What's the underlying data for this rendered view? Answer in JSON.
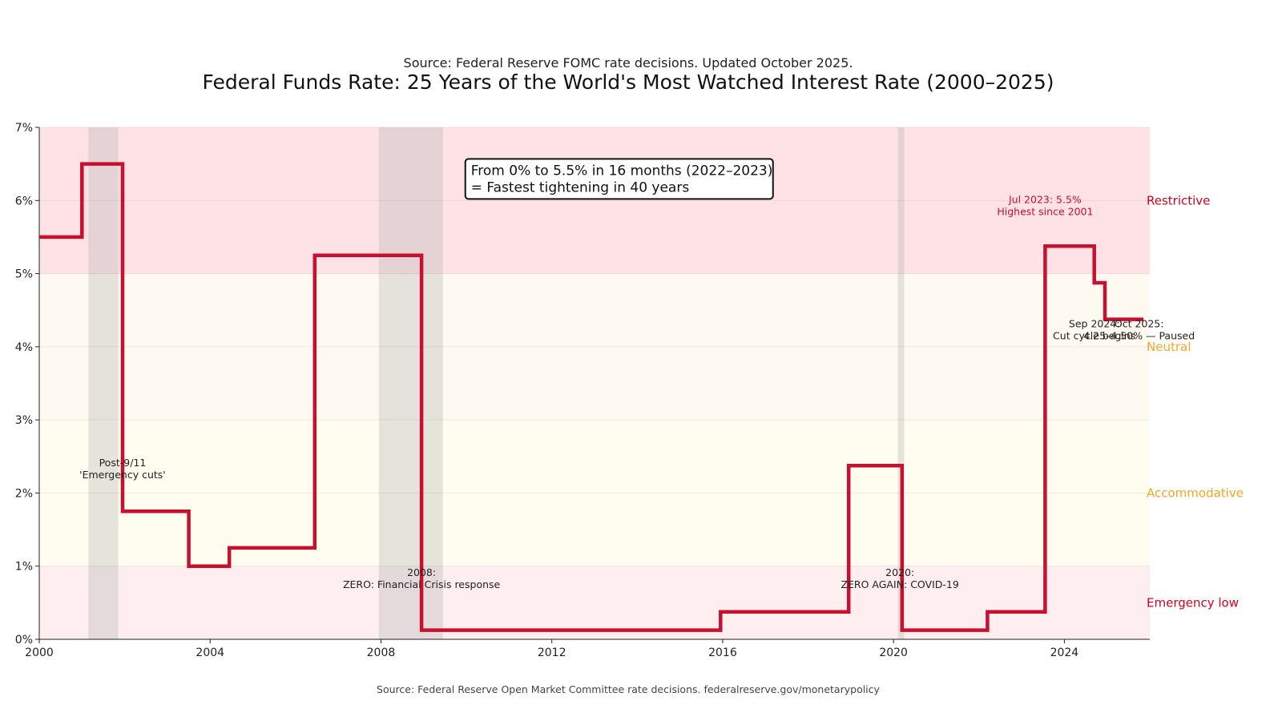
{
  "chart_data": {
    "type": "line",
    "subtitle": "Source: Federal Reserve FOMC rate decisions. Updated October 2025.",
    "title": "Federal Funds Rate: 25 Years of the World's Most Watched Interest Rate (2000–2025)",
    "footer": "Source: Federal Reserve Open Market Committee rate decisions. federalreserve.gov/monetarypolicy",
    "xlim": [
      2000,
      2026
    ],
    "ylim": [
      0,
      7
    ],
    "x_ticks": [
      2000,
      2004,
      2008,
      2012,
      2016,
      2020,
      2024
    ],
    "y_ticks": [
      0,
      1,
      2,
      3,
      4,
      5,
      6,
      7
    ],
    "y_tick_labels": [
      "0%",
      "1%",
      "2%",
      "3%",
      "4%",
      "5%",
      "6%",
      "7%"
    ],
    "series": [
      {
        "name": "Federal Funds Rate",
        "color": "#c8102e",
        "x": [
          2000.0,
          2001.0,
          2001.0,
          2001.95,
          2001.95,
          2003.5,
          2003.5,
          2004.45,
          2004.45,
          2006.45,
          2006.45,
          2008.95,
          2008.95,
          2015.95,
          2015.95,
          2018.95,
          2018.95,
          2020.2,
          2020.2,
          2022.2,
          2022.2,
          2023.55,
          2023.55,
          2024.7,
          2024.7,
          2024.95,
          2024.95,
          2025.85
        ],
        "values": [
          5.5,
          5.5,
          6.5,
          6.5,
          1.75,
          1.75,
          1.0,
          1.0,
          1.25,
          1.25,
          5.25,
          5.25,
          0.125,
          0.125,
          0.375,
          0.375,
          2.375,
          2.375,
          0.125,
          0.125,
          0.375,
          0.375,
          5.375,
          5.375,
          4.875,
          4.875,
          4.375,
          4.375
        ]
      }
    ],
    "zones": [
      {
        "label": "Emergency low",
        "from": 0,
        "to": 1,
        "color": "#ffeef0",
        "label_color": "#d0021b",
        "label_y": 0.5
      },
      {
        "label": "Accommodative",
        "from": 1,
        "to": 3,
        "color": "#fffdf0",
        "label_color": "#f5a623",
        "label_y": 2.0
      },
      {
        "label": "Neutral",
        "from": 3,
        "to": 5,
        "color": "#fffaf1",
        "label_color": "#f5a623",
        "label_y": 4.0
      },
      {
        "label": "Restrictive",
        "from": 5,
        "to": 7,
        "color": "#ffe2e6",
        "label_color": "#d0021b",
        "label_y": 6.0
      }
    ],
    "recessions": [
      {
        "start": 2001.15,
        "end": 2001.85
      },
      {
        "start": 2007.95,
        "end": 2009.45
      },
      {
        "start": 2020.1,
        "end": 2020.25
      }
    ],
    "annotations": [
      {
        "lines": [
          "Post-9/11",
          "'Emergency cuts'"
        ],
        "x": 2001.95,
        "y": 2.2,
        "style": "dark"
      },
      {
        "lines": [
          "2008:",
          "ZERO: Financial Crisis response"
        ],
        "x": 2008.95,
        "y": 0.7,
        "style": "dark"
      },
      {
        "lines": [
          "2020:",
          "ZERO AGAIN: COVID-19"
        ],
        "x": 2020.15,
        "y": 0.7,
        "style": "dark"
      },
      {
        "lines": [
          "Jul 2023: 5.5%",
          "Highest since 2001"
        ],
        "x": 2023.55,
        "y": 5.8,
        "style": "red"
      },
      {
        "lines": [
          "Sep 2024:",
          "Cut cycle begins"
        ],
        "x": 2024.7,
        "y": 4.1,
        "style": "dark"
      },
      {
        "lines": [
          "Oct 2025:",
          "4.25–4.50% — Paused"
        ],
        "x": 2025.75,
        "y": 4.1,
        "style": "dark"
      }
    ],
    "callout": {
      "lines": [
        "From 0% to 5.5% in 16 months (2022–2023)",
        "= Fastest tightening in 40 years"
      ],
      "x": 2010.05,
      "y": 6.35
    }
  }
}
